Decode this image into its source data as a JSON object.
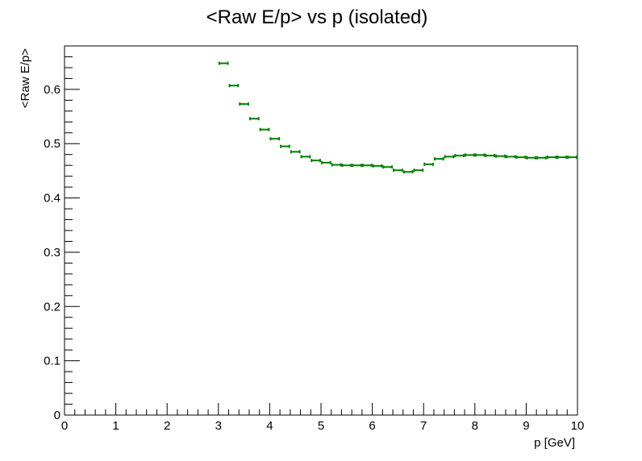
{
  "chart_data": {
    "type": "scatter",
    "title": "<Raw E/p> vs p (isolated)",
    "xlabel": "p [GeV]",
    "ylabel": "<Raw E/p>",
    "xlim": [
      0,
      10
    ],
    "ylim": [
      0,
      0.68
    ],
    "x_ticks": [
      0,
      1,
      2,
      3,
      4,
      5,
      6,
      7,
      8,
      9,
      10
    ],
    "x_tick_labels": [
      "0",
      "1",
      "2",
      "3",
      "4",
      "5",
      "6",
      "7",
      "8",
      "9",
      "10"
    ],
    "y_ticks": [
      0,
      0.1,
      0.2,
      0.3,
      0.4,
      0.5,
      0.6
    ],
    "y_tick_labels": [
      "0",
      "0.1",
      "0.2",
      "0.3",
      "0.4",
      "0.5",
      "0.6"
    ],
    "grid": false,
    "legend": "none",
    "series_color": "#008000",
    "bin_half_width": 0.1,
    "series": [
      {
        "x": [
          3.1,
          3.3,
          3.5,
          3.7,
          3.9,
          4.1,
          4.3,
          4.5,
          4.7,
          4.9,
          5.1,
          5.3,
          5.5,
          5.7,
          5.9,
          6.1,
          6.3,
          6.5,
          6.7,
          6.9,
          7.1,
          7.3,
          7.5,
          7.7,
          7.9,
          8.1,
          8.3,
          8.5,
          8.7,
          8.9,
          9.1,
          9.3,
          9.5,
          9.7,
          9.9
        ],
        "y": [
          0.648,
          0.607,
          0.573,
          0.546,
          0.526,
          0.509,
          0.495,
          0.485,
          0.476,
          0.469,
          0.465,
          0.461,
          0.46,
          0.46,
          0.46,
          0.459,
          0.457,
          0.451,
          0.448,
          0.451,
          0.462,
          0.472,
          0.476,
          0.478,
          0.479,
          0.479,
          0.478,
          0.477,
          0.476,
          0.475,
          0.474,
          0.474,
          0.475,
          0.475,
          0.475
        ]
      }
    ]
  }
}
